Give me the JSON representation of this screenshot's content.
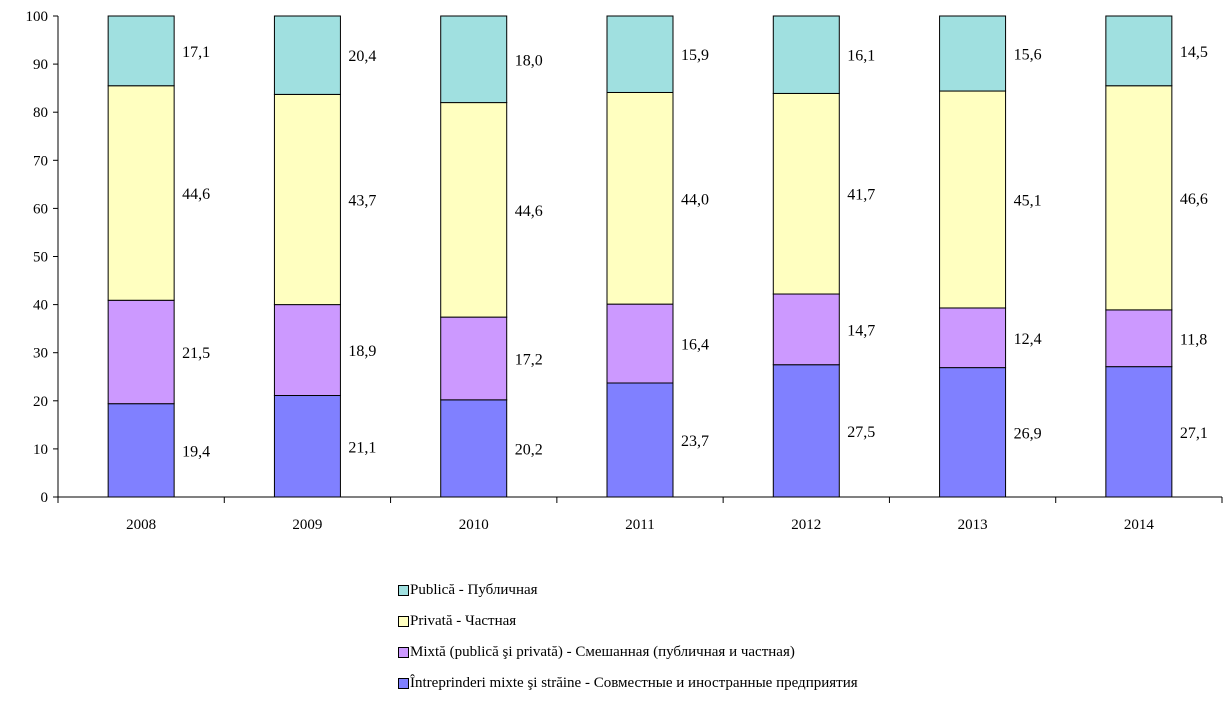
{
  "chart_data": {
    "type": "bar",
    "stacked": true,
    "categories": [
      "2008",
      "2009",
      "2010",
      "2011",
      "2012",
      "2013",
      "2014"
    ],
    "series": [
      {
        "name": "Întreprinderi mixte şi străine - Совместные и иностранные предприятия",
        "color": "#8080ff",
        "values": [
          19.4,
          21.1,
          20.2,
          23.7,
          27.5,
          26.9,
          27.1
        ],
        "labels": [
          "19,4",
          "21,1",
          "20,2",
          "23,7",
          "27,5",
          "26,9",
          "27,1"
        ]
      },
      {
        "name": "Mixtă (publică şi privată) - Смешанная (публичная и частная)",
        "color": "#cc99ff",
        "values": [
          21.5,
          18.9,
          17.2,
          16.4,
          14.7,
          12.4,
          11.8
        ],
        "labels": [
          "21,5",
          "18,9",
          "17,2",
          "16,4",
          "14,7",
          "12,4",
          "11,8"
        ]
      },
      {
        "name": "Privată - Частная",
        "color": "#ffffc0",
        "values": [
          44.6,
          43.7,
          44.6,
          44.0,
          41.7,
          45.1,
          46.6
        ],
        "labels": [
          "44,6",
          "43,7",
          "44,6",
          "44,0",
          "41,7",
          "45,1",
          "46,6"
        ]
      },
      {
        "name": "Publică - Публичная",
        "color": "#a0e0e0",
        "values": [
          17.1,
          20.4,
          18.0,
          15.9,
          16.1,
          15.6,
          14.5
        ],
        "labels": [
          "17,1",
          "20,4",
          "18,0",
          "15,9",
          "16,1",
          "15,6",
          "14,5"
        ]
      }
    ],
    "ylim": [
      0,
      100
    ],
    "yticks": [
      "0",
      "10",
      "20",
      "30",
      "40",
      "50",
      "60",
      "70",
      "80",
      "90",
      "100"
    ],
    "xlabel": "",
    "ylabel": "",
    "title": "",
    "grid": false,
    "legend_position": "bottom",
    "legend_order": [
      3,
      2,
      1,
      0
    ]
  }
}
